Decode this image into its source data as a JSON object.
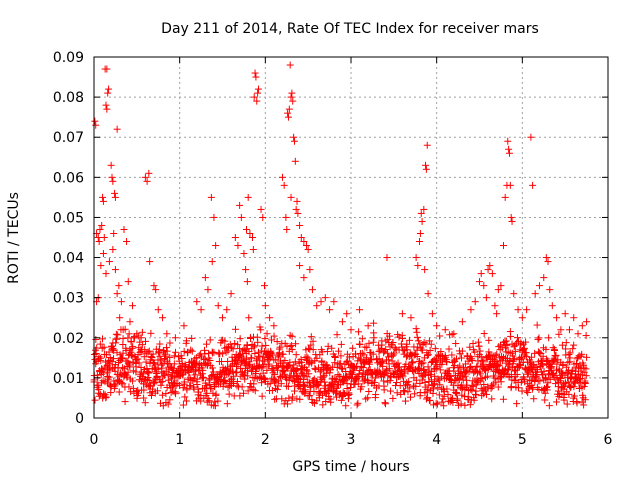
{
  "chart_data": {
    "type": "scatter",
    "title": "Day 211 of 2014, Rate Of TEC Index for receiver mars",
    "xlabel": "GPS time / hours",
    "ylabel": "ROTI / TECUs",
    "xlim": [
      0,
      6
    ],
    "ylim": [
      0,
      0.09
    ],
    "xticks": [
      0,
      1,
      2,
      3,
      4,
      5,
      6
    ],
    "yticks": [
      0,
      0.01,
      0.02,
      0.03,
      0.04,
      0.05,
      0.06,
      0.07,
      0.08,
      0.09
    ],
    "xtick_labels": [
      "0",
      "1",
      "2",
      "3",
      "4",
      "5",
      "6"
    ],
    "ytick_labels": [
      "0",
      "0.01",
      "0.02",
      "0.03",
      "0.04",
      "0.05",
      "0.06",
      "0.07",
      "0.08",
      "0.09"
    ],
    "grid": true,
    "marker": "+",
    "color": "#ff0000",
    "series": [
      {
        "name": "ROTI",
        "points": [
          [
            0.01,
            0.074
          ],
          [
            0.02,
            0.073
          ],
          [
            0.03,
            0.046
          ],
          [
            0.05,
            0.045
          ],
          [
            0.06,
            0.044
          ],
          [
            0.07,
            0.047
          ],
          [
            0.09,
            0.048
          ],
          [
            0.1,
            0.055
          ],
          [
            0.11,
            0.054
          ],
          [
            0.12,
            0.045
          ],
          [
            0.13,
            0.087
          ],
          [
            0.15,
            0.087
          ],
          [
            0.16,
            0.081
          ],
          [
            0.17,
            0.082
          ],
          [
            0.14,
            0.078
          ],
          [
            0.15,
            0.077
          ],
          [
            0.2,
            0.063
          ],
          [
            0.21,
            0.06
          ],
          [
            0.22,
            0.059
          ],
          [
            0.24,
            0.056
          ],
          [
            0.25,
            0.055
          ],
          [
            0.27,
            0.072
          ],
          [
            0.23,
            0.046
          ],
          [
            0.29,
            0.033
          ],
          [
            0.32,
            0.029
          ],
          [
            0.35,
            0.047
          ],
          [
            0.38,
            0.044
          ],
          [
            0.4,
            0.034
          ],
          [
            0.45,
            0.028
          ],
          [
            0.6,
            0.06
          ],
          [
            0.62,
            0.059
          ],
          [
            0.64,
            0.061
          ],
          [
            0.65,
            0.039
          ],
          [
            0.7,
            0.033
          ],
          [
            0.72,
            0.032
          ],
          [
            0.75,
            0.027
          ],
          [
            0.03,
            0.029
          ],
          [
            0.05,
            0.03
          ],
          [
            0.08,
            0.038
          ],
          [
            0.11,
            0.041
          ],
          [
            0.14,
            0.036
          ],
          [
            0.18,
            0.039
          ],
          [
            0.22,
            0.042
          ],
          [
            0.25,
            0.037
          ],
          [
            0.27,
            0.031
          ],
          [
            0.3,
            0.025
          ],
          [
            0.34,
            0.022
          ],
          [
            0.42,
            0.024
          ],
          [
            0.5,
            0.021
          ],
          [
            0.55,
            0.02
          ],
          [
            0.8,
            0.025
          ],
          [
            0.85,
            0.021
          ],
          [
            0.95,
            0.02
          ],
          [
            1.05,
            0.023
          ],
          [
            1.2,
            0.029
          ],
          [
            1.25,
            0.027
          ],
          [
            1.3,
            0.035
          ],
          [
            1.33,
            0.032
          ],
          [
            1.37,
            0.055
          ],
          [
            1.4,
            0.05
          ],
          [
            1.42,
            0.043
          ],
          [
            1.38,
            0.039
          ],
          [
            1.45,
            0.028
          ],
          [
            1.5,
            0.025
          ],
          [
            1.55,
            0.027
          ],
          [
            1.6,
            0.031
          ],
          [
            1.65,
            0.045
          ],
          [
            1.68,
            0.043
          ],
          [
            1.7,
            0.053
          ],
          [
            1.72,
            0.05
          ],
          [
            1.75,
            0.041
          ],
          [
            1.78,
            0.047
          ],
          [
            1.8,
            0.055
          ],
          [
            1.82,
            0.046
          ],
          [
            1.77,
            0.037
          ],
          [
            1.79,
            0.034
          ],
          [
            1.85,
            0.045
          ],
          [
            1.86,
            0.042
          ],
          [
            1.87,
            0.08
          ],
          [
            1.88,
            0.086
          ],
          [
            1.89,
            0.085
          ],
          [
            1.9,
            0.079
          ],
          [
            1.91,
            0.081
          ],
          [
            1.92,
            0.082
          ],
          [
            1.95,
            0.052
          ],
          [
            1.97,
            0.05
          ],
          [
            1.99,
            0.033
          ],
          [
            2.0,
            0.028
          ],
          [
            2.05,
            0.025
          ],
          [
            2.1,
            0.023
          ],
          [
            2.2,
            0.06
          ],
          [
            2.22,
            0.058
          ],
          [
            2.24,
            0.05
          ],
          [
            2.26,
            0.076
          ],
          [
            2.27,
            0.075
          ],
          [
            2.28,
            0.077
          ],
          [
            2.29,
            0.088
          ],
          [
            2.3,
            0.08
          ],
          [
            2.31,
            0.081
          ],
          [
            2.32,
            0.079
          ],
          [
            2.33,
            0.07
          ],
          [
            2.34,
            0.069
          ],
          [
            2.35,
            0.064
          ],
          [
            2.37,
            0.054
          ],
          [
            2.38,
            0.051
          ],
          [
            2.4,
            0.048
          ],
          [
            2.42,
            0.045
          ],
          [
            2.45,
            0.044
          ],
          [
            2.48,
            0.043
          ],
          [
            2.5,
            0.042
          ],
          [
            2.52,
            0.037
          ],
          [
            2.55,
            0.032
          ],
          [
            2.25,
            0.047
          ],
          [
            2.3,
            0.055
          ],
          [
            2.36,
            0.052
          ],
          [
            2.4,
            0.038
          ],
          [
            2.45,
            0.035
          ],
          [
            2.6,
            0.028
          ],
          [
            2.65,
            0.029
          ],
          [
            2.7,
            0.03
          ],
          [
            2.75,
            0.027
          ],
          [
            2.8,
            0.029
          ],
          [
            2.9,
            0.024
          ],
          [
            2.95,
            0.026
          ],
          [
            3.0,
            0.022
          ],
          [
            3.1,
            0.027
          ],
          [
            3.2,
            0.023
          ],
          [
            3.42,
            0.04
          ],
          [
            3.6,
            0.026
          ],
          [
            3.7,
            0.025
          ],
          [
            3.76,
            0.04
          ],
          [
            3.78,
            0.038
          ],
          [
            3.8,
            0.044
          ],
          [
            3.81,
            0.046
          ],
          [
            3.82,
            0.051
          ],
          [
            3.83,
            0.049
          ],
          [
            3.85,
            0.052
          ],
          [
            3.86,
            0.037
          ],
          [
            3.87,
            0.063
          ],
          [
            3.88,
            0.062
          ],
          [
            3.89,
            0.068
          ],
          [
            3.9,
            0.031
          ],
          [
            3.95,
            0.026
          ],
          [
            4.0,
            0.023
          ],
          [
            4.1,
            0.022
          ],
          [
            4.2,
            0.021
          ],
          [
            4.3,
            0.024
          ],
          [
            4.4,
            0.027
          ],
          [
            4.45,
            0.029
          ],
          [
            4.5,
            0.034
          ],
          [
            4.52,
            0.036
          ],
          [
            4.55,
            0.033
          ],
          [
            4.58,
            0.03
          ],
          [
            4.6,
            0.037
          ],
          [
            4.62,
            0.038
          ],
          [
            4.65,
            0.036
          ],
          [
            4.68,
            0.028
          ],
          [
            4.7,
            0.026
          ],
          [
            4.72,
            0.032
          ],
          [
            4.75,
            0.033
          ],
          [
            4.78,
            0.043
          ],
          [
            4.8,
            0.055
          ],
          [
            4.82,
            0.058
          ],
          [
            4.83,
            0.069
          ],
          [
            4.84,
            0.067
          ],
          [
            4.85,
            0.066
          ],
          [
            4.86,
            0.058
          ],
          [
            4.87,
            0.05
          ],
          [
            4.88,
            0.049
          ],
          [
            4.9,
            0.031
          ],
          [
            4.95,
            0.027
          ],
          [
            5.0,
            0.025
          ],
          [
            5.05,
            0.027
          ],
          [
            5.1,
            0.07
          ],
          [
            5.12,
            0.058
          ],
          [
            5.15,
            0.031
          ],
          [
            5.2,
            0.033
          ],
          [
            5.25,
            0.035
          ],
          [
            5.28,
            0.04
          ],
          [
            5.3,
            0.039
          ],
          [
            5.32,
            0.032
          ],
          [
            5.35,
            0.028
          ],
          [
            5.4,
            0.025
          ],
          [
            5.45,
            0.022
          ],
          [
            5.5,
            0.026
          ],
          [
            5.55,
            0.022
          ],
          [
            5.6,
            0.025
          ],
          [
            5.65,
            0.021
          ],
          [
            5.7,
            0.023
          ],
          [
            5.75,
            0.024
          ]
        ]
      }
    ],
    "background_band": {
      "x_start": 0.0,
      "x_end": 5.75,
      "y_baseline": 0.012,
      "y_spread": 0.006,
      "y_min": 0.003,
      "y_max": 0.026,
      "x_step": 0.006
    }
  }
}
